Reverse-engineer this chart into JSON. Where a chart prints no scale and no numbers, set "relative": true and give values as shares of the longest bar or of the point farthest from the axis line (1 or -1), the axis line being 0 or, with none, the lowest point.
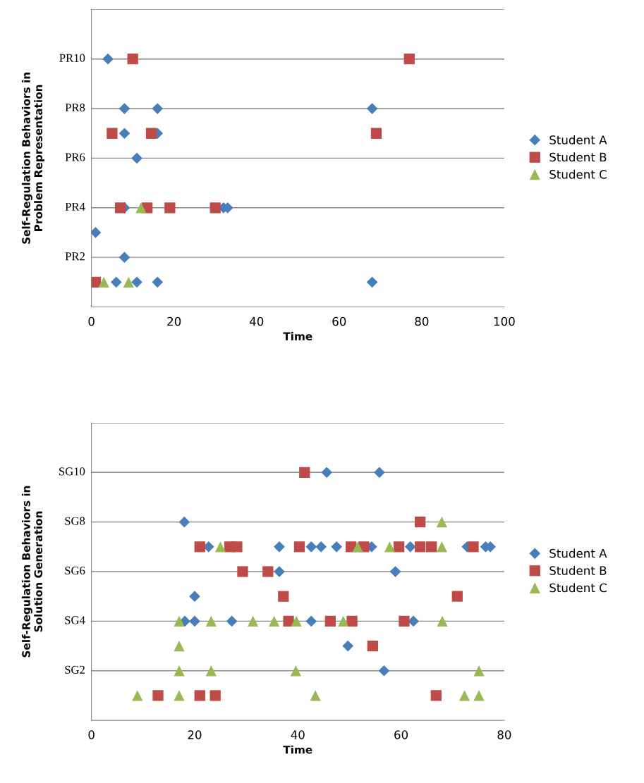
{
  "chart_data": [
    {
      "type": "scatter",
      "relative": true,
      "xlabel": "Time",
      "ylabel": "Self-Regulation Behaviors in\nProblem Representation",
      "xlim": [
        0,
        100
      ],
      "xticks": [
        0,
        20,
        40,
        60,
        80,
        100
      ],
      "legend": "right",
      "ref_lines": [
        {
          "axis": "y",
          "value": 0.2,
          "label": "PR2",
          "color": "#888888"
        },
        {
          "axis": "y",
          "value": 0.4,
          "label": "PR4",
          "color": "#888888"
        },
        {
          "axis": "y",
          "value": 0.6,
          "label": "PR6",
          "color": "#888888"
        },
        {
          "axis": "y",
          "value": 0.8,
          "label": "PR8",
          "color": "#888888"
        },
        {
          "axis": "y",
          "value": 1.0,
          "label": "PR10",
          "color": "#888888"
        },
        {
          "axis": "y",
          "value": 1.2,
          "label": null,
          "color": "#888888"
        }
      ],
      "series": [
        {
          "name": "Student A",
          "color": "#4a7ebb",
          "marker": "diamond",
          "x": [
            4,
            8,
            16,
            68,
            8,
            16,
            11,
            8,
            32,
            33,
            1,
            8,
            6,
            11,
            16,
            68
          ],
          "values": [
            1.0,
            0.8,
            0.8,
            0.8,
            0.7,
            0.7,
            0.6,
            0.4,
            0.4,
            0.4,
            0.3,
            0.2,
            0.1,
            0.1,
            0.1,
            0.1
          ]
        },
        {
          "name": "Student B",
          "color": "#be4b48",
          "marker": "square",
          "x": [
            10,
            77,
            5,
            14.5,
            69,
            7,
            13.5,
            19,
            30,
            1
          ],
          "values": [
            1.0,
            1.0,
            0.7,
            0.7,
            0.7,
            0.4,
            0.4,
            0.4,
            0.4,
            0.1
          ]
        },
        {
          "name": "Student C",
          "color": "#98b954",
          "marker": "triangle",
          "x": [
            12,
            3,
            9
          ],
          "values": [
            0.4,
            0.1,
            0.1
          ]
        }
      ]
    },
    {
      "type": "scatter",
      "relative": true,
      "xlabel": "Time",
      "ylabel": "Self-Regulation Behaviors in\nSolution Generation",
      "xlim": [
        0,
        80
      ],
      "xticks": [
        0,
        20,
        40,
        60,
        80
      ],
      "legend": "right",
      "ref_lines": [
        {
          "axis": "y",
          "value": 0.2,
          "label": "SG2",
          "color": "#888888"
        },
        {
          "axis": "y",
          "value": 0.4,
          "label": "SG4",
          "color": "#888888"
        },
        {
          "axis": "y",
          "value": 0.6,
          "label": "SG6",
          "color": "#888888"
        },
        {
          "axis": "y",
          "value": 0.8,
          "label": "SG8",
          "color": "#888888"
        },
        {
          "axis": "y",
          "value": 1.0,
          "label": "SG10",
          "color": "#888888"
        },
        {
          "axis": "y",
          "value": 1.2,
          "label": null,
          "color": "#888888"
        }
      ],
      "series": [
        {
          "name": "Student A",
          "color": "#4a7ebb",
          "marker": "diamond",
          "x": [
            45.6,
            55.8,
            18,
            22.7,
            36.4,
            42.6,
            44.5,
            47.5,
            54.3,
            61.8,
            72.8,
            76.4,
            77.3,
            36.4,
            58.9,
            20,
            18.1,
            20,
            27.2,
            42.6,
            62.4,
            49.7,
            56.7
          ],
          "values": [
            1.0,
            1.0,
            0.8,
            0.7,
            0.7,
            0.7,
            0.7,
            0.7,
            0.7,
            0.7,
            0.7,
            0.7,
            0.7,
            0.6,
            0.6,
            0.5,
            0.4,
            0.4,
            0.4,
            0.4,
            0.4,
            0.3,
            0.2
          ]
        },
        {
          "name": "Student B",
          "color": "#be4b48",
          "marker": "square",
          "x": [
            41.3,
            63.7,
            21,
            26.8,
            28.2,
            40.3,
            50.3,
            52.8,
            59.6,
            63.7,
            65.9,
            74,
            29.3,
            34.2,
            37.2,
            70.9,
            38.2,
            46.3,
            50.5,
            60.6,
            54.5,
            12.9,
            21,
            24,
            66.8
          ],
          "values": [
            1.0,
            0.8,
            0.7,
            0.7,
            0.7,
            0.7,
            0.7,
            0.7,
            0.7,
            0.7,
            0.7,
            0.7,
            0.6,
            0.6,
            0.5,
            0.5,
            0.4,
            0.4,
            0.4,
            0.4,
            0.3,
            0.1,
            0.1,
            0.1,
            0.1
          ]
        },
        {
          "name": "Student C",
          "color": "#98b954",
          "marker": "triangle",
          "x": [
            67.9,
            25,
            51.6,
            57.8,
            67.9,
            17,
            23.2,
            31.3,
            35.4,
            39.7,
            48.8,
            68,
            17,
            17,
            23.2,
            39.6,
            75.1,
            8.9,
            17,
            43.4,
            72.3,
            75.1
          ],
          "values": [
            0.8,
            0.7,
            0.7,
            0.7,
            0.7,
            0.4,
            0.4,
            0.4,
            0.4,
            0.4,
            0.4,
            0.4,
            0.3,
            0.2,
            0.2,
            0.2,
            0.2,
            0.1,
            0.1,
            0.1,
            0.1,
            0.1
          ]
        }
      ]
    }
  ]
}
